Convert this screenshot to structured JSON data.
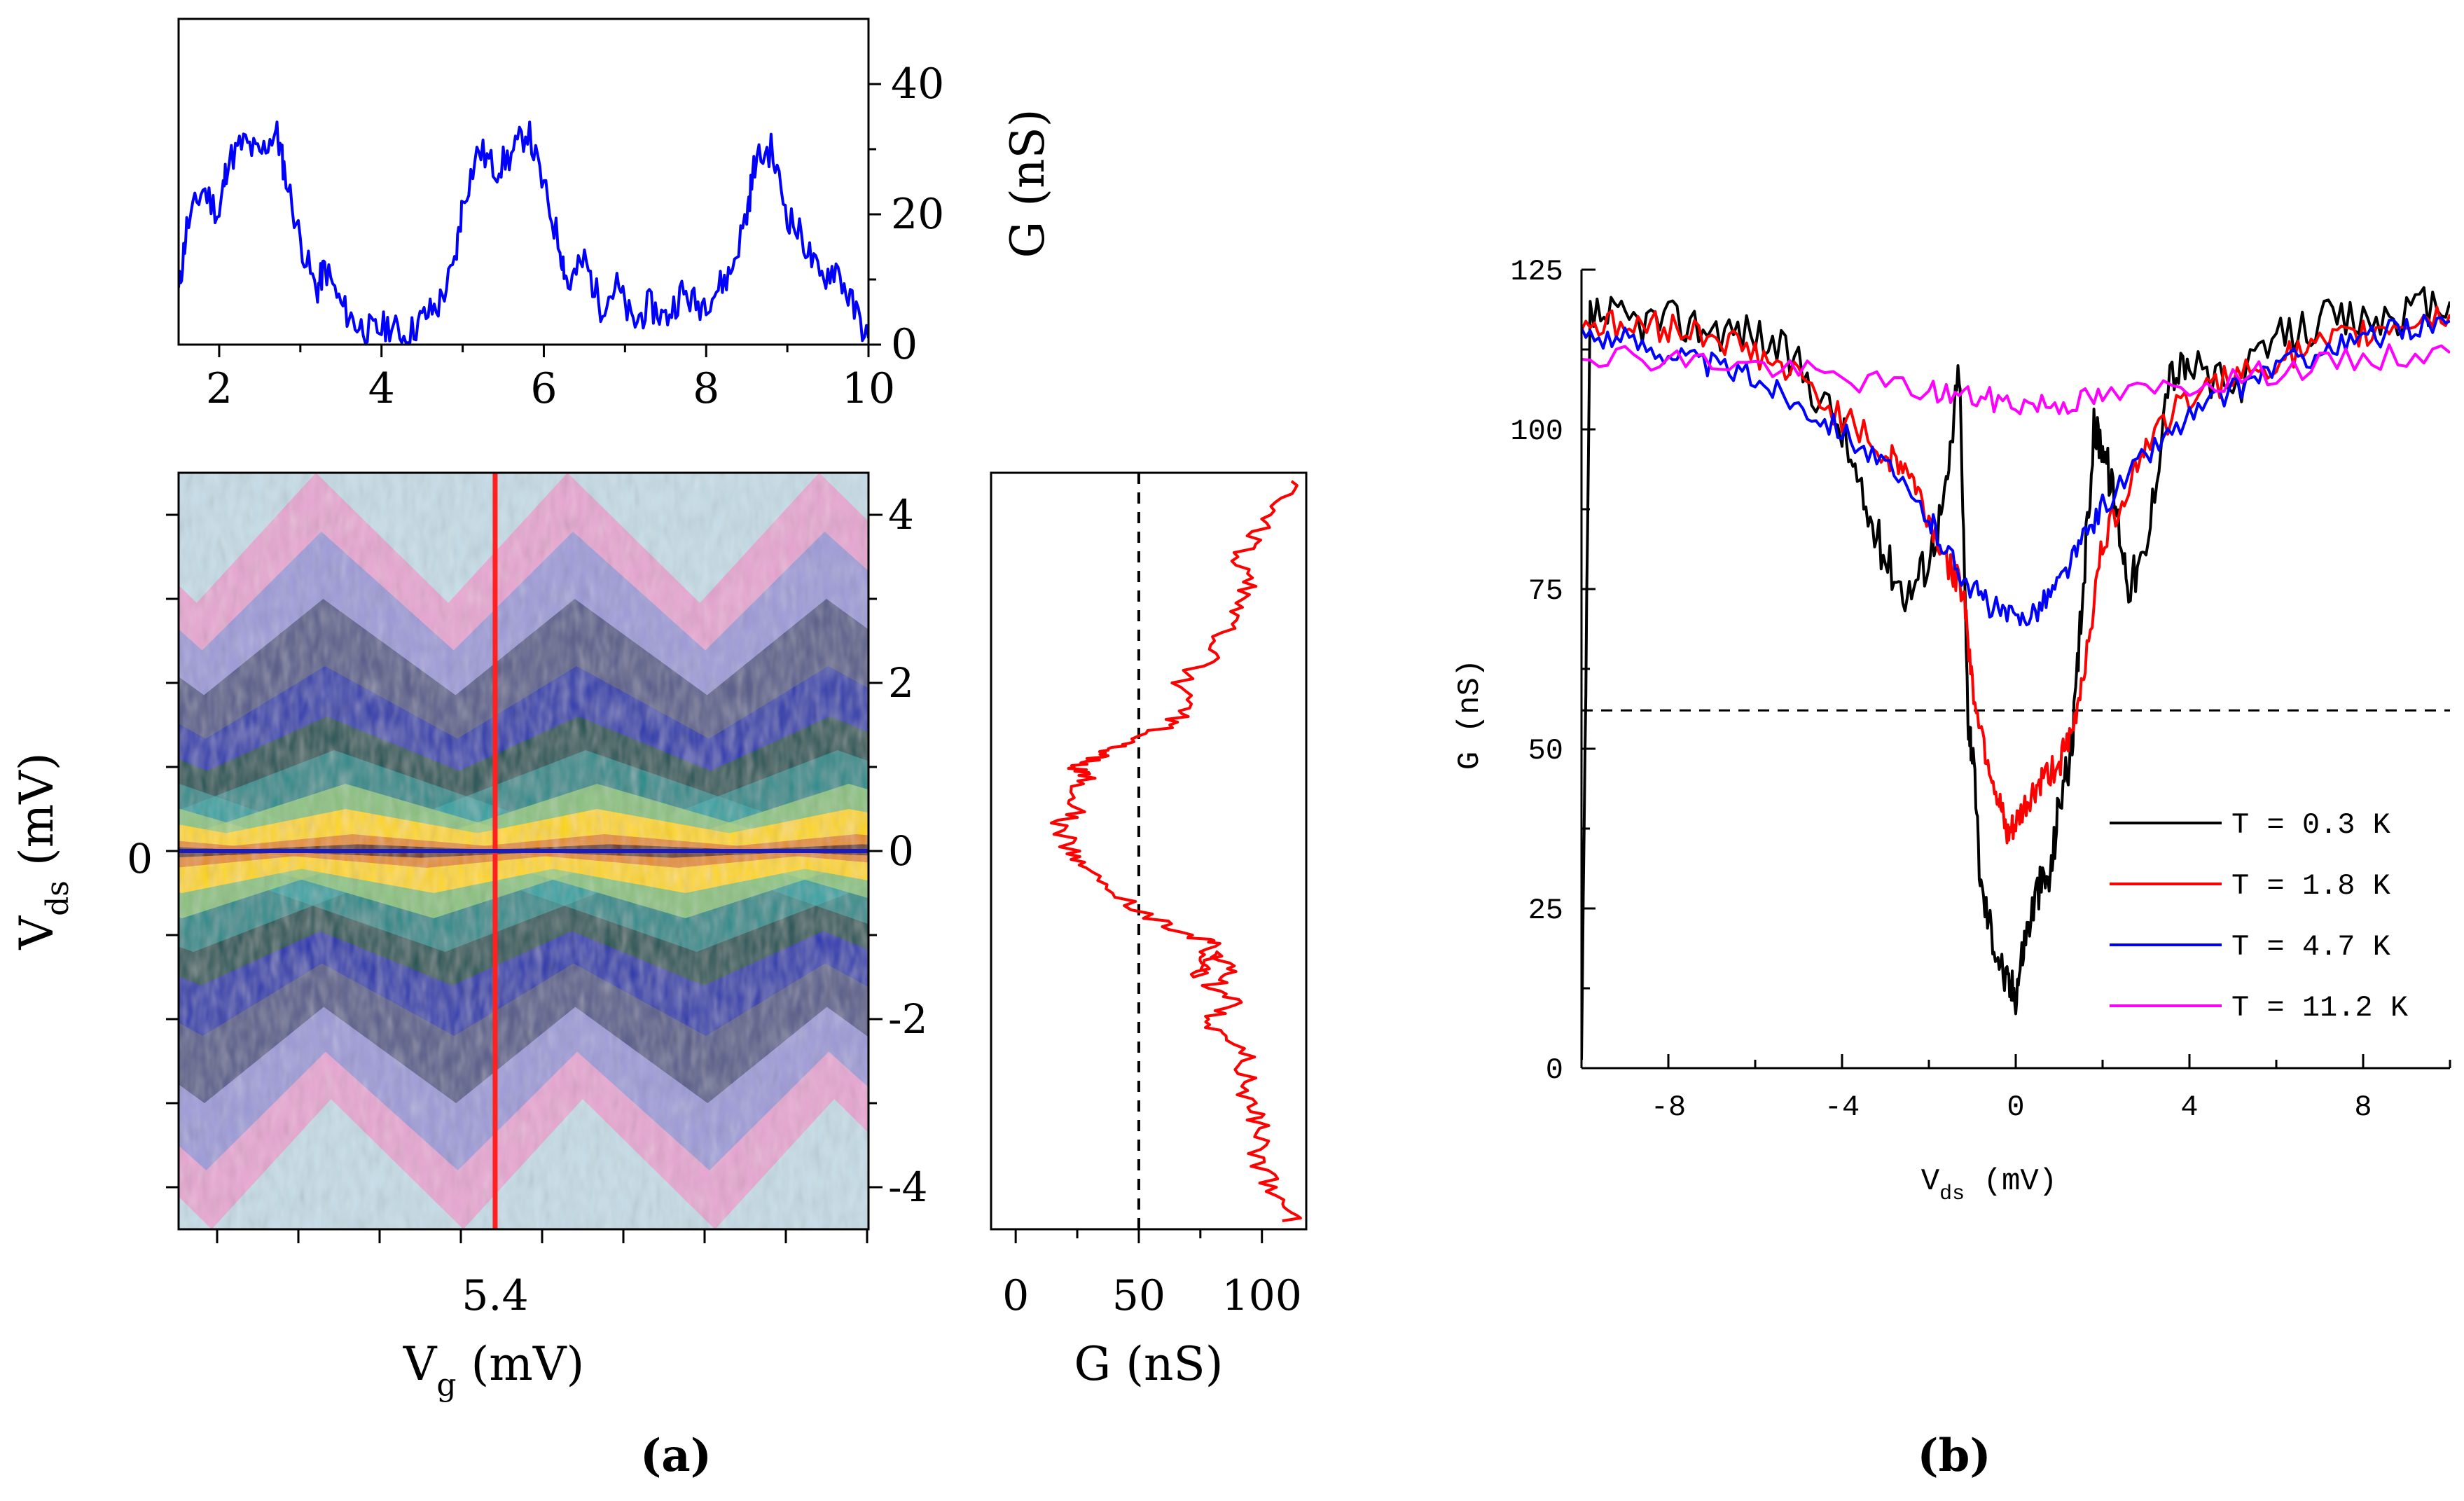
{
  "panel_labels": {
    "a": "(a)",
    "b": "(b)"
  },
  "chart_data": [
    {
      "id": "a-top",
      "type": "line",
      "xlabel": "",
      "ylabel": "G (nS)",
      "xlim": [
        1.5,
        10
      ],
      "ylim": [
        0,
        50
      ],
      "x_ticks": [
        2,
        4,
        6,
        8,
        10
      ],
      "y_ticks": [
        0,
        20,
        40
      ],
      "series": [
        {
          "color": "#0000ff",
          "x": [
            1.5,
            1.6,
            1.8,
            2.0,
            2.1,
            2.3,
            2.5,
            2.7,
            2.8,
            3.0,
            3.2,
            3.3,
            3.5,
            3.7,
            3.9,
            4.1,
            4.3,
            4.5,
            4.7,
            4.9,
            5.0,
            5.2,
            5.4,
            5.6,
            5.8,
            6.0,
            6.2,
            6.3,
            6.5,
            6.7,
            6.9,
            7.1,
            7.3,
            7.5,
            7.7,
            7.9,
            8.1,
            8.3,
            8.5,
            8.6,
            8.8,
            9.0,
            9.2,
            9.4,
            9.6,
            9.8,
            10.0
          ],
          "y": [
            8,
            18,
            24,
            20,
            28,
            31,
            29,
            33,
            27,
            16,
            8,
            12,
            6,
            3,
            2,
            3,
            1,
            4,
            6,
            12,
            22,
            30,
            27,
            29,
            33,
            24,
            15,
            9,
            13,
            6,
            9,
            3,
            6,
            4,
            8,
            6,
            8,
            11,
            20,
            28,
            30,
            20,
            16,
            10,
            12,
            6,
            1
          ]
        }
      ]
    },
    {
      "id": "a-map",
      "type": "heatmap",
      "xlabel": "V_g (mV)",
      "ylabel": "V_ds (mV)",
      "xlim": [
        1.5,
        10
      ],
      "ylim": [
        -4.5,
        4.5
      ],
      "x_tick_labels": [
        {
          "value": 5.4,
          "label": "5.4"
        }
      ],
      "y_ticks": [
        -4,
        -2,
        0,
        2,
        4
      ],
      "left_tick_label": "0",
      "cut_lines": [
        {
          "orientation": "vertical",
          "value": 5.4,
          "color": "#ff2020"
        },
        {
          "orientation": "horizontal",
          "value": 0,
          "color": "#1c1cb4"
        }
      ],
      "colormap": [
        "#c6dde8",
        "#e8a6d2",
        "#9d9ad8",
        "#555a8a",
        "#1f2fb0",
        "#0a5050",
        "#2ab0b0",
        "#a8d07a",
        "#ffd700",
        "#e07b10",
        "#5a1a00"
      ]
    },
    {
      "id": "a-right",
      "type": "line",
      "xlabel": "G (nS)",
      "ylabel": "",
      "xlim": [
        -10,
        118
      ],
      "ylim": [
        -4.5,
        4.5
      ],
      "x_ticks": [
        0,
        50,
        100
      ],
      "reference_line_x": 50,
      "series": [
        {
          "color": "#ff0000",
          "g": [
            112,
            108,
            103,
            96,
            100,
            97,
            92,
            95,
            83,
            78,
            88,
            80,
            86,
            82,
            74,
            76,
            78,
            72,
            55,
            40,
            28,
            22,
            18,
            25,
            22,
            30,
            24,
            33,
            40,
            50,
            62,
            72,
            68,
            78,
            85,
            90,
            95,
            92,
            98,
            104,
            112
          ],
          "vds": [
            -4.4,
            -4.2,
            -3.9,
            -3.6,
            -3.3,
            -3.1,
            -2.8,
            -2.5,
            -2.2,
            -2.0,
            -1.8,
            -1.6,
            -1.4,
            -1.2,
            -1.5,
            -1.3,
            -1.1,
            -1.0,
            -0.8,
            -0.5,
            -0.2,
            0.0,
            0.3,
            0.5,
            0.7,
            0.9,
            1.0,
            1.1,
            1.2,
            1.3,
            1.5,
            1.7,
            2.0,
            2.3,
            2.6,
            2.9,
            3.2,
            3.5,
            3.8,
            4.1,
            4.4
          ]
        }
      ]
    },
    {
      "id": "b",
      "type": "line",
      "xlabel": "V_ds (mV)",
      "ylabel": "G (nS)",
      "xlim": [
        -10,
        10
      ],
      "ylim": [
        0,
        125
      ],
      "x_ticks": [
        -8,
        -4,
        0,
        4,
        8
      ],
      "y_ticks": [
        0,
        25,
        50,
        75,
        100,
        125
      ],
      "reference_line_y": 56,
      "legend_position": "lower-right",
      "series": [
        {
          "name": "T = 0.3 K",
          "color": "#000000",
          "x": [
            -10.0,
            -9.8,
            -9.0,
            -8.0,
            -7.0,
            -6.0,
            -5.0,
            -4.0,
            -3.5,
            -3.0,
            -2.5,
            -2.0,
            -1.6,
            -1.3,
            -1.1,
            -1.0,
            -0.8,
            -0.5,
            -0.2,
            0.0,
            0.2,
            0.5,
            0.8,
            1.0,
            1.3,
            1.5,
            1.8,
            2.0,
            2.3,
            2.6,
            3.0,
            3.5,
            4.0,
            5.0,
            6.0,
            7.0,
            8.0,
            9.0,
            10.0
          ],
          "y": [
            0,
            118,
            117,
            117,
            116,
            115,
            110,
            100,
            88,
            80,
            74,
            80,
            90,
            110,
            55,
            50,
            28,
            20,
            13,
            12,
            20,
            28,
            30,
            42,
            50,
            70,
            100,
            98,
            88,
            76,
            80,
            108,
            110,
            106,
            114,
            117,
            117,
            118,
            120
          ]
        },
        {
          "name": "T = 1.8 K",
          "color": "#ff0000",
          "x": [
            -10.0,
            -9.0,
            -8.0,
            -7.0,
            -6.0,
            -5.0,
            -4.0,
            -3.0,
            -2.5,
            -2.0,
            -1.5,
            -1.2,
            -1.0,
            -0.7,
            -0.4,
            -0.2,
            0.0,
            0.3,
            0.6,
            1.0,
            1.3,
            1.6,
            2.0,
            2.5,
            3.0,
            4.0,
            5.0,
            6.0,
            7.0,
            8.0,
            9.0,
            10.0
          ],
          "y": [
            117,
            116,
            116,
            115,
            112,
            108,
            102,
            96,
            94,
            86,
            78,
            75,
            60,
            50,
            42,
            36,
            38,
            42,
            45,
            48,
            52,
            64,
            82,
            90,
            98,
            105,
            108,
            111,
            113,
            115,
            117,
            118
          ]
        },
        {
          "name": "T = 4.7 K",
          "color": "#0000ff",
          "x": [
            -10.0,
            -9.0,
            -8.0,
            -7.0,
            -6.0,
            -5.0,
            -4.0,
            -3.0,
            -2.0,
            -1.5,
            -1.0,
            -0.5,
            0.0,
            0.5,
            1.0,
            1.5,
            2.0,
            3.0,
            4.0,
            5.0,
            6.0,
            7.0,
            8.0,
            9.0,
            10.0
          ],
          "y": [
            115,
            114,
            112,
            110,
            108,
            104,
            100,
            94,
            86,
            80,
            75,
            72,
            70,
            72,
            76,
            82,
            88,
            96,
            102,
            106,
            110,
            112,
            114,
            116,
            117
          ]
        },
        {
          "name": "T = 11.2 K",
          "color": "#ff00ff",
          "x": [
            -10.0,
            -8.0,
            -6.0,
            -4.0,
            -2.0,
            -1.0,
            0.0,
            1.0,
            2.0,
            4.0,
            6.0,
            8.0,
            10.0
          ],
          "y": [
            112,
            111,
            110,
            108,
            106,
            105,
            104,
            104,
            105,
            107,
            109,
            111,
            112
          ]
        }
      ]
    }
  ]
}
